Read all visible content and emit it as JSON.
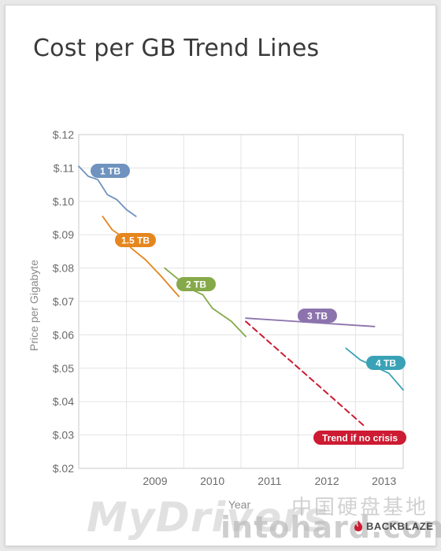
{
  "chart_data": {
    "type": "line",
    "title": "Cost per GB Trend Lines",
    "xlabel": "Year",
    "ylabel": "Price per Gigabyte",
    "xticks": [
      "2009",
      "2010",
      "2011",
      "2012",
      "2013"
    ],
    "yticks": [
      "$.12",
      "$.11",
      "$.10",
      "$.09",
      "$.08",
      "$.07",
      "$.06",
      "$.05",
      "$.04",
      "$.03",
      "$.02"
    ],
    "ylim": [
      0.02,
      0.12
    ],
    "xlim": [
      "2008-03",
      "2013-11"
    ],
    "grid": true,
    "series": [
      {
        "name": "1 TB",
        "color": "#6f93be",
        "dashed": false,
        "points": [
          [
            "2008-03",
            0.1105
          ],
          [
            "2008-05",
            0.1075
          ],
          [
            "2008-07",
            0.1065
          ],
          [
            "2008-09",
            0.102
          ],
          [
            "2008-11",
            0.1005
          ],
          [
            "2009-01",
            0.0975
          ],
          [
            "2009-03",
            0.0955
          ]
        ]
      },
      {
        "name": "1.5 TB",
        "color": "#e5861e",
        "dashed": false,
        "points": [
          [
            "2008-08",
            0.0955
          ],
          [
            "2008-10",
            0.0915
          ],
          [
            "2008-12",
            0.0895
          ],
          [
            "2009-02",
            0.086
          ],
          [
            "2009-05",
            0.0825
          ],
          [
            "2009-08",
            0.078
          ],
          [
            "2009-12",
            0.0715
          ]
        ]
      },
      {
        "name": "2 TB",
        "color": "#86a94a",
        "dashed": false,
        "points": [
          [
            "2009-09",
            0.08
          ],
          [
            "2009-12",
            0.0765
          ],
          [
            "2010-02",
            0.074
          ],
          [
            "2010-05",
            0.072
          ],
          [
            "2010-07",
            0.068
          ],
          [
            "2010-11",
            0.064
          ],
          [
            "2011-02",
            0.0595
          ]
        ]
      },
      {
        "name": "3 TB",
        "color": "#8c73ad",
        "dashed": false,
        "points": [
          [
            "2011-02",
            0.065
          ],
          [
            "2013-05",
            0.0625
          ]
        ]
      },
      {
        "name": "4 TB",
        "color": "#3aa2b6",
        "dashed": false,
        "points": [
          [
            "2012-11",
            0.056
          ],
          [
            "2013-02",
            0.0525
          ],
          [
            "2013-05",
            0.0505
          ],
          [
            "2013-08",
            0.0485
          ],
          [
            "2013-11",
            0.0435
          ]
        ]
      },
      {
        "name": "Trend if no crisis",
        "color": "#cc1b32",
        "dashed": true,
        "points": [
          [
            "2011-02",
            0.064
          ],
          [
            "2013-03",
            0.0325
          ]
        ]
      }
    ]
  },
  "labels": {
    "one_tb": "1 TB",
    "one_five_tb": "1.5 TB",
    "two_tb": "2 TB",
    "three_tb": "3 TB",
    "four_tb": "4 TB",
    "trend": "Trend if no crisis"
  },
  "watermarks": {
    "site_a": "MyDrivers",
    "site_b": "intohard.com",
    "site_cn": "中国硬盘基地",
    "brand": "BACKBLAZE"
  },
  "icons": {
    "brand_logo": "flame-icon"
  }
}
